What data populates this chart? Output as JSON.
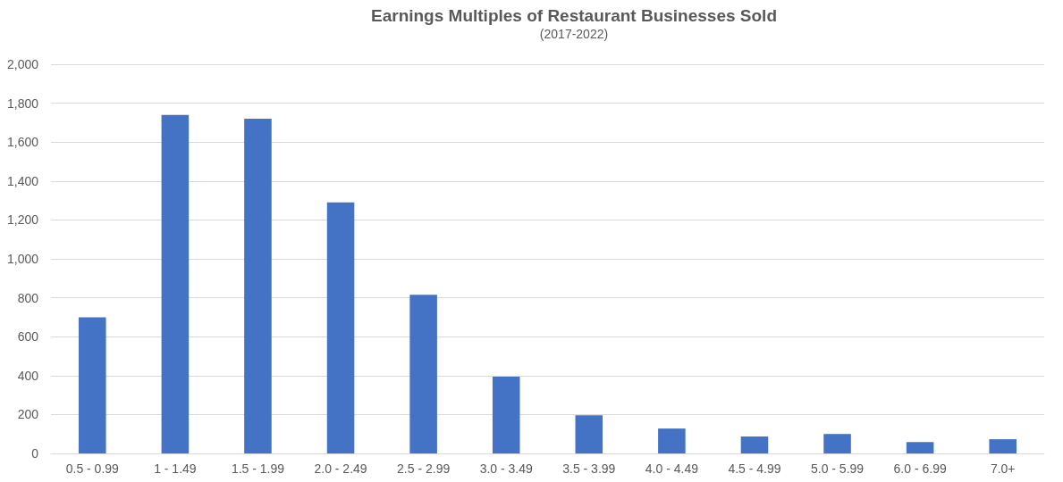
{
  "chart_data": {
    "type": "bar",
    "title": "Earnings Multiples of Restaurant Businesses Sold",
    "subtitle": "(2017-2022)",
    "categories": [
      "0.5 - 0.99",
      "1 - 1.49",
      "1.5 - 1.99",
      "2.0 - 2.49",
      "2.5 - 2.99",
      "3.0 - 3.49",
      "3.5 - 3.99",
      "4.0 - 4.49",
      "4.5 - 4.99",
      "5.0 - 5.99",
      "6.0 - 6.99",
      "7.0+"
    ],
    "values": [
      700,
      1740,
      1720,
      1290,
      815,
      395,
      196,
      128,
      87,
      100,
      59,
      73
    ],
    "color": "#4472c4",
    "ylim": [
      0,
      2000
    ],
    "yticks": [
      0,
      200,
      400,
      600,
      800,
      {
        "value": 1000,
        "label": "1,000"
      },
      {
        "value": 1200,
        "label": "1,200"
      },
      {
        "value": 1400,
        "label": "1,400"
      },
      {
        "value": 1600,
        "label": "1,600"
      },
      {
        "value": 1800,
        "label": "1,800"
      },
      {
        "value": 2000,
        "label": "2,000"
      }
    ],
    "grid": "y"
  }
}
